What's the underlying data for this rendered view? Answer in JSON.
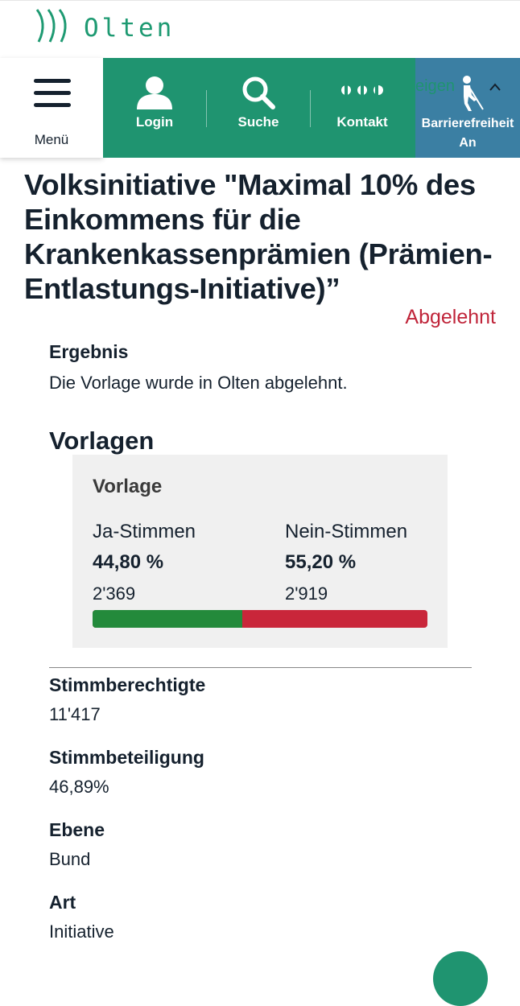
{
  "logo": {
    "text": "Olten",
    "icon": "olten-wave-logo"
  },
  "nav": {
    "menu_label": "Menü",
    "items": [
      {
        "label": "Login",
        "icon": "user-icon"
      },
      {
        "label": "Suche",
        "icon": "search-icon"
      },
      {
        "label": "Kontakt",
        "icon": "contact-icon"
      }
    ],
    "accessibility": {
      "label_line1": "Barrierefreiheit",
      "label_line2": "An",
      "icon": "accessibility-blind-person-icon",
      "hidden_text": "eigen"
    },
    "colors": {
      "green": "#1f9470",
      "blue": "#3b7fa3"
    }
  },
  "page": {
    "title": "Volksinitiative \"Maximal 10% des Einkommens für die Krankenkassenprämien (Prämien-Entlastungs-Initiative)”",
    "status": "Abgelehnt",
    "status_color": "#c0253a",
    "ergebnis_label": "Ergebnis",
    "ergebnis_text": "Die Vorlage wurde in Olten abgelehnt.",
    "vorlagen_heading": "Vorlagen"
  },
  "vorlage": {
    "title": "Vorlage",
    "ja_label": "Ja-Stimmen",
    "ja_percent": "44,80 %",
    "ja_count": "2'369",
    "nein_label": "Nein-Stimmen",
    "nein_percent": "55,20 %",
    "nein_count": "2'919",
    "ja_share": 0.448,
    "ja_color": "#238a3b",
    "nein_color": "#c9263a"
  },
  "details": [
    {
      "label": "Stimmberechtigte",
      "value": "11'417"
    },
    {
      "label": "Stimmbeteiligung",
      "value": "46,89%"
    },
    {
      "label": "Ebene",
      "value": "Bund"
    },
    {
      "label": "Art",
      "value": "Initiative"
    }
  ]
}
